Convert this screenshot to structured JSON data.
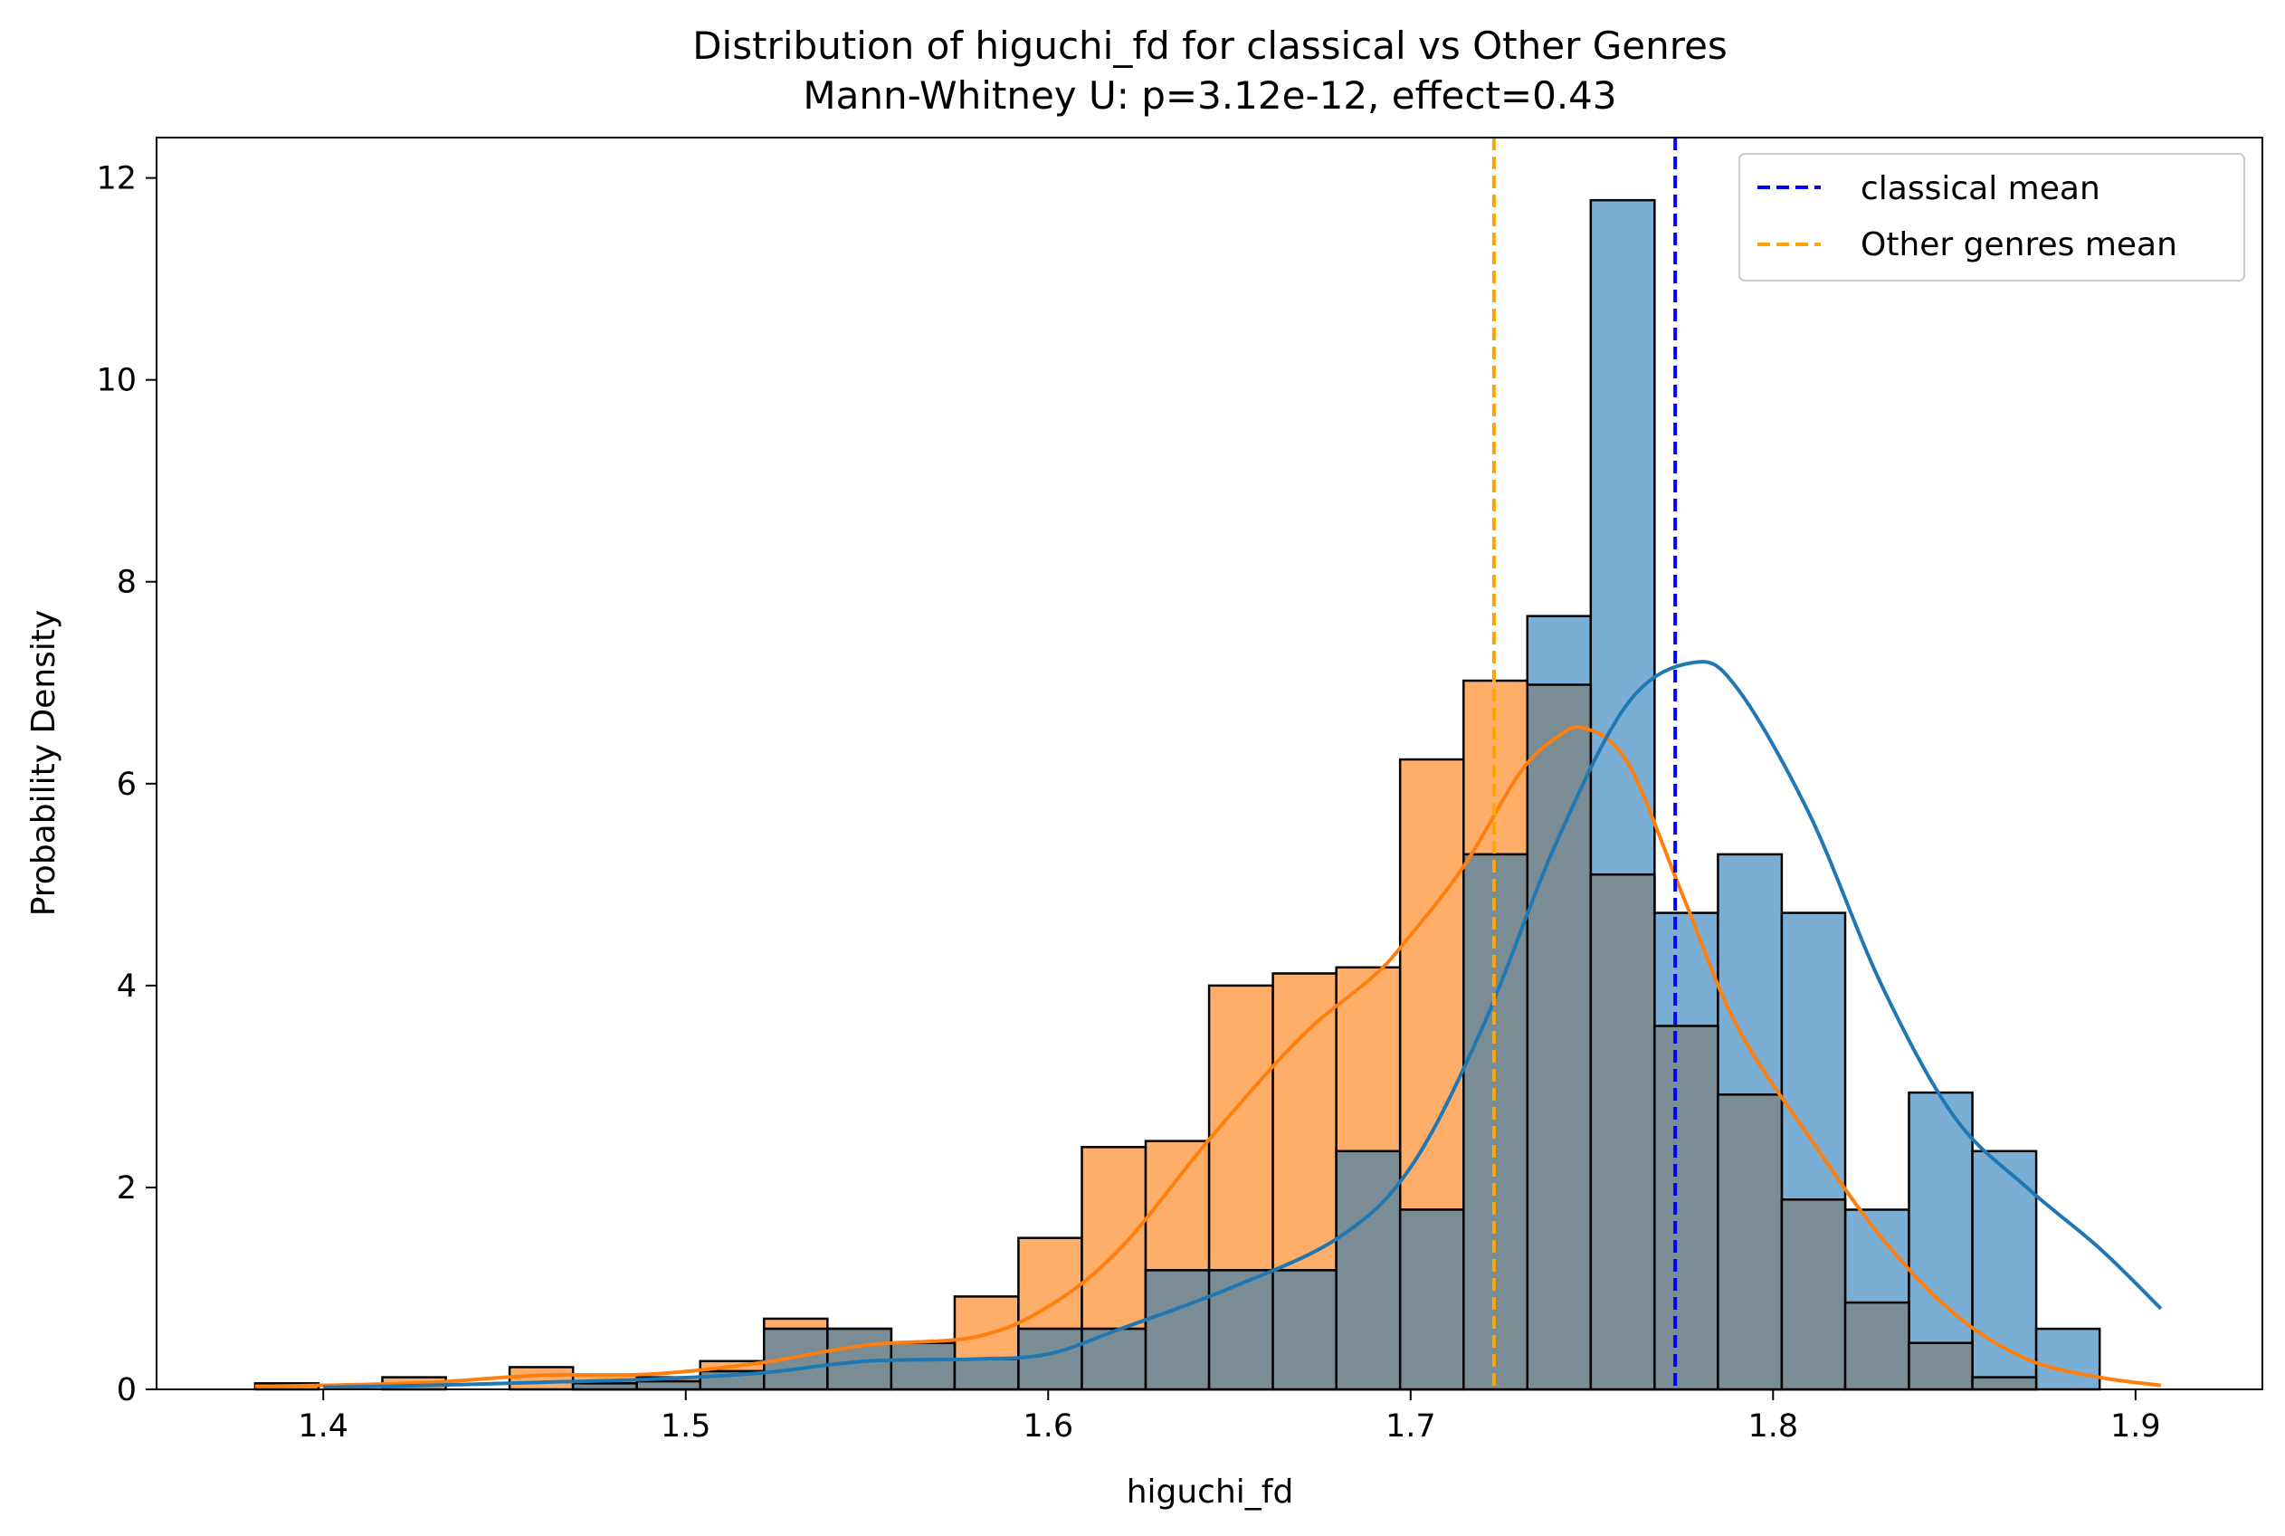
{
  "chart_data": {
    "type": "histogram",
    "title": "Distribution of higuchi_fd for classical vs Other Genres",
    "subtitle": "Mann-Whitney U: p=3.12e-12, effect=0.43",
    "xlabel": "higuchi_fd",
    "ylabel": "Probability Density",
    "xlim": [
      1.354,
      1.935
    ],
    "ylim": [
      0,
      12.4
    ],
    "xticks": [
      1.4,
      1.5,
      1.6,
      1.7,
      1.8,
      1.9
    ],
    "yticks": [
      0,
      2,
      4,
      6,
      8,
      10,
      12
    ],
    "grid": false,
    "legend_position": "top-right",
    "bin_edges": [
      1.3812,
      1.3987,
      1.4163,
      1.4338,
      1.4514,
      1.4689,
      1.4865,
      1.504,
      1.5216,
      1.5391,
      1.5567,
      1.5742,
      1.5918,
      1.6093,
      1.6269,
      1.6444,
      1.662,
      1.6795,
      1.6971,
      1.7146,
      1.7322,
      1.7497,
      1.7673,
      1.7848,
      1.8024,
      1.8199,
      1.8375,
      1.855,
      1.8726,
      1.8901,
      1.9077
    ],
    "series": [
      {
        "name": "Other genres",
        "color": "#ff7f0e",
        "fill": "#ffae6a",
        "values": [
          0.06,
          0.0,
          0.12,
          0.0,
          0.22,
          0.14,
          0.12,
          0.28,
          0.7,
          0.6,
          0.46,
          0.92,
          1.5,
          2.4,
          2.46,
          4.0,
          4.12,
          4.18,
          6.24,
          7.02,
          6.98,
          5.1,
          3.6,
          2.92,
          1.88,
          0.86,
          0.46,
          0.12,
          0.0,
          0.0
        ],
        "kde_x": [
          1.3812,
          1.4,
          1.43,
          1.46,
          1.49,
          1.52,
          1.55,
          1.58,
          1.6,
          1.62,
          1.645,
          1.67,
          1.69,
          1.7,
          1.715,
          1.73,
          1.74,
          1.748,
          1.76,
          1.775,
          1.79,
          1.81,
          1.83,
          1.85,
          1.87,
          1.89,
          1.907
        ],
        "kde_y": [
          0.03,
          0.04,
          0.07,
          0.14,
          0.15,
          0.26,
          0.44,
          0.52,
          0.82,
          1.4,
          2.5,
          3.5,
          4.1,
          4.5,
          5.2,
          6.1,
          6.45,
          6.55,
          6.2,
          4.9,
          3.6,
          2.5,
          1.5,
          0.75,
          0.3,
          0.12,
          0.04
        ]
      },
      {
        "name": "classical",
        "color": "#1f77b4",
        "fill": "#7aaed4",
        "values": [
          0.0,
          0.0,
          0.0,
          0.0,
          0.0,
          0.06,
          0.08,
          0.18,
          0.6,
          0.6,
          0.46,
          0.3,
          0.6,
          0.6,
          1.18,
          1.18,
          1.18,
          2.36,
          1.78,
          5.3,
          7.66,
          11.78,
          4.72,
          5.3,
          4.72,
          1.78,
          2.94,
          2.36,
          0.6,
          0.0
        ],
        "kde_x": [
          1.4,
          1.43,
          1.46,
          1.49,
          1.52,
          1.55,
          1.58,
          1.6,
          1.62,
          1.65,
          1.68,
          1.7,
          1.72,
          1.74,
          1.76,
          1.778,
          1.79,
          1.81,
          1.83,
          1.85,
          1.87,
          1.89,
          1.907
        ],
        "kde_y": [
          0.02,
          0.04,
          0.07,
          0.1,
          0.16,
          0.28,
          0.3,
          0.35,
          0.6,
          1.0,
          1.5,
          2.2,
          3.6,
          5.4,
          6.8,
          7.2,
          6.95,
          5.7,
          4.0,
          2.7,
          2.0,
          1.4,
          0.8
        ]
      }
    ],
    "mean_lines": [
      {
        "label": "classical mean",
        "x": 1.773,
        "color": "#0000ff"
      },
      {
        "label": "Other genres mean",
        "x": 1.723,
        "color": "#ffa500"
      }
    ],
    "overlap_fill": "#7a8c94"
  }
}
